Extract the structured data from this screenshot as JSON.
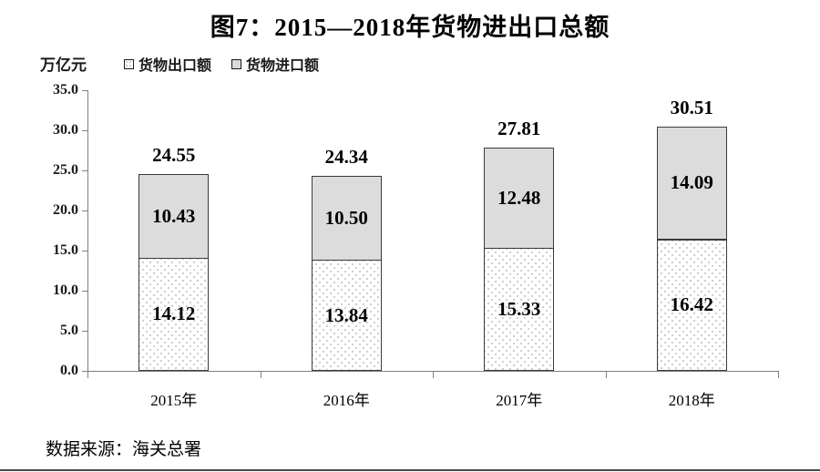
{
  "title": "图7：2015—2018年货物进出口总额",
  "unit_label": "万亿元",
  "legend": [
    {
      "label": "货物出口额",
      "style": "dotted"
    },
    {
      "label": "货物进口额",
      "style": "gray"
    }
  ],
  "source": "数据来源：海关总署",
  "colors": {
    "import_fill": "#dcdcdc",
    "export_dot": "#bdbdbd",
    "bar_border": "#3a3a3a",
    "axis": "#808080",
    "text": "#000000"
  },
  "chart_data": {
    "type": "bar",
    "stacked": true,
    "title": "图7：2015—2018年货物进出口总额",
    "ylabel": "万亿元",
    "categories": [
      "2015年",
      "2016年",
      "2017年",
      "2018年"
    ],
    "series": [
      {
        "name": "货物出口额",
        "values": [
          14.12,
          13.84,
          15.33,
          16.42
        ]
      },
      {
        "name": "货物进口额",
        "values": [
          10.43,
          10.5,
          12.48,
          14.09
        ]
      }
    ],
    "totals": [
      24.55,
      24.34,
      27.81,
      30.51
    ],
    "ylim": [
      0,
      35
    ],
    "ytick_step": 5,
    "ytick_labels": [
      "0.0",
      "5.0",
      "10.0",
      "15.0",
      "20.0",
      "25.0",
      "30.0",
      "35.0"
    ],
    "grid": false,
    "legend_position": "top"
  }
}
